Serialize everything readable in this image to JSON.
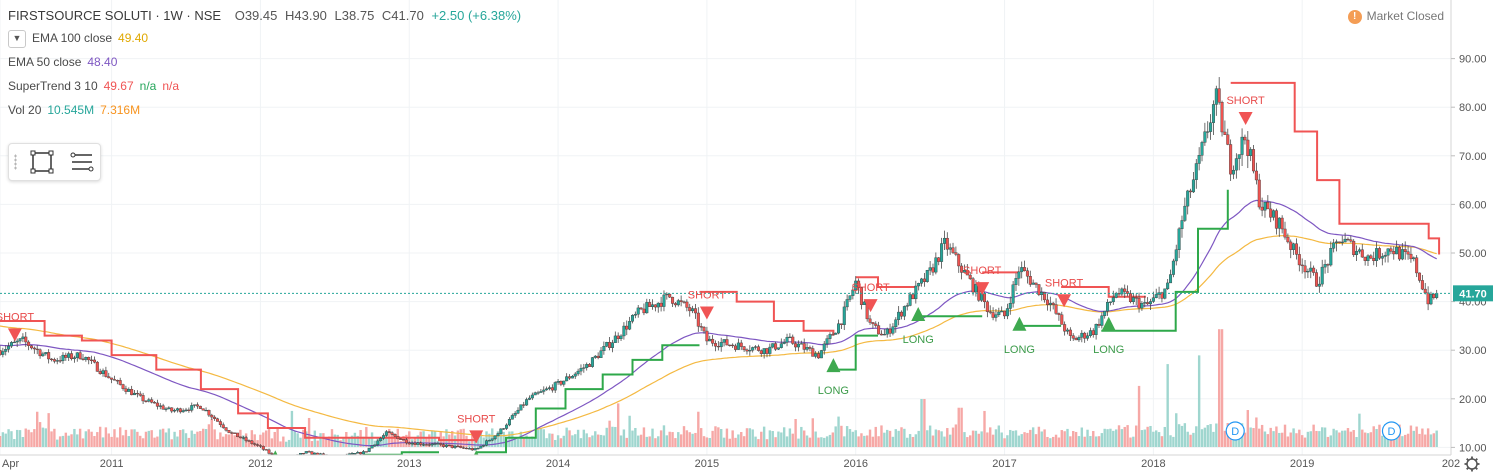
{
  "header": {
    "symbol": "FIRSTSOURCE SOLUTI · 1W · NSE",
    "open": "O39.45",
    "high": "H43.90",
    "low": "L38.75",
    "close": "C41.70",
    "change": "+2.50 (+6.38%)"
  },
  "studies": [
    {
      "name": "EMA 100 close",
      "values": [
        "49.40"
      ],
      "colors": [
        "#f4b942"
      ]
    },
    {
      "name": "EMA 50 close",
      "values": [
        "48.40"
      ],
      "colors": [
        "#7e57c2"
      ]
    },
    {
      "name": "SuperTrend 3 10",
      "values": [
        "49.67",
        "n/a",
        "n/a"
      ],
      "colors": [
        "#f05454",
        "#26a65b",
        "#f05454"
      ]
    },
    {
      "name": "Vol 20",
      "values": [
        "10.545M",
        "7.316M"
      ],
      "colors": [
        "#26a69a",
        "#f7931e"
      ]
    }
  ],
  "market_status": "Market Closed",
  "market_status_icon": "!",
  "price_label": "41.70",
  "colors": {
    "up": "#26a69a",
    "down": "#ef5350",
    "ema100": "#f4b942",
    "ema50": "#7e57c2",
    "supertrend_down": "#f05454",
    "supertrend_up": "#2ea84a",
    "price_line": "#26a69a"
  },
  "icons": [
    "chevron-down-icon",
    "rectangle-tool-icon",
    "lines-tool-icon",
    "exclamation-icon",
    "gear-icon",
    "dividend-icon"
  ],
  "chart_data": {
    "type": "candlestick",
    "title": "FIRSTSOURCE SOLUTI · 1W · NSE",
    "xlabel": "",
    "ylabel": "",
    "x_ticks": [
      "Apr",
      "2011",
      "2012",
      "2013",
      "2014",
      "2015",
      "2016",
      "2017",
      "2018",
      "2019",
      "202"
    ],
    "x_range": [
      2010.25,
      2020.0
    ],
    "y_ticks": [
      10,
      20,
      30,
      40,
      50,
      60,
      70,
      80,
      90
    ],
    "ylim": [
      3,
      90
    ],
    "grid": true,
    "last_price": 41.7,
    "price_anchors": [
      [
        2010.25,
        30
      ],
      [
        2010.4,
        32
      ],
      [
        2010.6,
        28
      ],
      [
        2010.8,
        29
      ],
      [
        2011.0,
        24
      ],
      [
        2011.2,
        20
      ],
      [
        2011.4,
        17.5
      ],
      [
        2011.6,
        18.5
      ],
      [
        2011.8,
        13
      ],
      [
        2012.0,
        10
      ],
      [
        2012.15,
        7
      ],
      [
        2012.3,
        9
      ],
      [
        2012.5,
        8
      ],
      [
        2012.7,
        9
      ],
      [
        2012.85,
        13
      ],
      [
        2013.0,
        11
      ],
      [
        2013.2,
        10.5
      ],
      [
        2013.45,
        9.5
      ],
      [
        2013.6,
        13
      ],
      [
        2013.8,
        20
      ],
      [
        2014.0,
        23
      ],
      [
        2014.2,
        27
      ],
      [
        2014.4,
        33
      ],
      [
        2014.55,
        38
      ],
      [
        2014.75,
        41
      ],
      [
        2014.9,
        38
      ],
      [
        2015.0,
        32
      ],
      [
        2015.2,
        31
      ],
      [
        2015.4,
        30
      ],
      [
        2015.55,
        32
      ],
      [
        2015.75,
        29
      ],
      [
        2015.9,
        36
      ],
      [
        2016.0,
        44
      ],
      [
        2016.1,
        35
      ],
      [
        2016.2,
        33
      ],
      [
        2016.35,
        40
      ],
      [
        2016.5,
        46
      ],
      [
        2016.6,
        52
      ],
      [
        2016.75,
        45
      ],
      [
        2016.9,
        38
      ],
      [
        2017.0,
        37
      ],
      [
        2017.1,
        47
      ],
      [
        2017.3,
        40
      ],
      [
        2017.45,
        32
      ],
      [
        2017.6,
        34
      ],
      [
        2017.75,
        42
      ],
      [
        2017.95,
        39
      ],
      [
        2018.1,
        43
      ],
      [
        2018.2,
        58
      ],
      [
        2018.3,
        68
      ],
      [
        2018.42,
        82
      ],
      [
        2018.52,
        68
      ],
      [
        2018.62,
        74
      ],
      [
        2018.72,
        60
      ],
      [
        2018.85,
        56
      ],
      [
        2018.95,
        50
      ],
      [
        2019.1,
        44
      ],
      [
        2019.25,
        53
      ],
      [
        2019.45,
        49
      ],
      [
        2019.6,
        51
      ],
      [
        2019.75,
        48
      ],
      [
        2019.85,
        40
      ],
      [
        2019.92,
        41.7
      ]
    ],
    "supertrend": {
      "down_segments": [
        [
          [
            2010.25,
            36
          ],
          [
            2010.55,
            33
          ],
          [
            2010.8,
            32
          ],
          [
            2011.0,
            29
          ],
          [
            2011.3,
            26
          ],
          [
            2011.6,
            22
          ],
          [
            2011.85,
            17
          ],
          [
            2012.05,
            14
          ],
          [
            2012.3,
            12
          ],
          [
            2012.6,
            12
          ],
          [
            2012.85,
            12
          ],
          [
            2013.2,
            11.5
          ],
          [
            2013.45,
            11
          ]
        ],
        [
          [
            2014.95,
            42
          ],
          [
            2015.2,
            40
          ],
          [
            2015.45,
            36
          ],
          [
            2015.65,
            34
          ],
          [
            2015.85,
            33
          ]
        ],
        [
          [
            2016.0,
            45
          ],
          [
            2016.15,
            43
          ],
          [
            2016.4,
            43
          ]
        ],
        [
          [
            2016.85,
            46
          ],
          [
            2017.1,
            46
          ]
        ],
        [
          [
            2017.38,
            43
          ],
          [
            2017.7,
            41
          ],
          [
            2017.95,
            41
          ]
        ],
        [
          [
            2018.52,
            85
          ],
          [
            2018.8,
            85
          ],
          [
            2018.95,
            75
          ],
          [
            2019.1,
            65
          ],
          [
            2019.25,
            56
          ],
          [
            2019.5,
            56
          ],
          [
            2019.75,
            56
          ],
          [
            2019.85,
            53
          ],
          [
            2019.92,
            49.7
          ]
        ]
      ],
      "up_segments": [
        [
          [
            2012.1,
            7.5
          ],
          [
            2012.4,
            7.5
          ],
          [
            2012.7,
            8.5
          ],
          [
            2012.95,
            9
          ],
          [
            2013.2,
            9
          ]
        ],
        [
          [
            2013.45,
            9
          ],
          [
            2013.65,
            12
          ],
          [
            2013.85,
            18
          ],
          [
            2014.05,
            22
          ],
          [
            2014.3,
            25
          ],
          [
            2014.5,
            28
          ],
          [
            2014.7,
            31
          ],
          [
            2014.95,
            31
          ]
        ],
        [
          [
            2015.85,
            26
          ],
          [
            2016.0,
            33
          ],
          [
            2016.15,
            33
          ]
        ],
        [
          [
            2016.4,
            37
          ],
          [
            2016.85,
            37
          ]
        ],
        [
          [
            2017.1,
            35
          ],
          [
            2017.38,
            35
          ]
        ],
        [
          [
            2017.65,
            34
          ],
          [
            2017.95,
            34
          ],
          [
            2018.15,
            42
          ],
          [
            2018.3,
            55
          ],
          [
            2018.5,
            63
          ]
        ]
      ]
    },
    "signals": [
      {
        "type": "SHORT",
        "x": 2010.35,
        "y": 34.5
      },
      {
        "type": "LONG",
        "x": 2012.1,
        "y": 6.5
      },
      {
        "type": "LONG",
        "x": 2013.45,
        "y": 6.5
      },
      {
        "type": "SHORT",
        "x": 2013.45,
        "y": 13.5
      },
      {
        "type": "SHORT",
        "x": 2015.0,
        "y": 39
      },
      {
        "type": "SHORT",
        "x": 2016.1,
        "y": 40.5
      },
      {
        "type": "LONG",
        "x": 2015.85,
        "y": 25.5
      },
      {
        "type": "LONG",
        "x": 2016.42,
        "y": 36
      },
      {
        "type": "SHORT",
        "x": 2016.85,
        "y": 44
      },
      {
        "type": "LONG",
        "x": 2017.1,
        "y": 34
      },
      {
        "type": "SHORT",
        "x": 2017.4,
        "y": 41.5
      },
      {
        "type": "LONG",
        "x": 2017.7,
        "y": 34
      },
      {
        "type": "SHORT",
        "x": 2018.62,
        "y": 79
      }
    ],
    "dividend_markers": [
      {
        "label": "D",
        "x": 2018.55
      },
      {
        "label": "D",
        "x": 2019.6
      }
    ],
    "volume": {
      "max_million": 55,
      "spikes": [
        [
          2018.45,
          54
        ],
        [
          2018.3,
          42
        ],
        [
          2018.1,
          38
        ],
        [
          2017.9,
          28
        ],
        [
          2016.45,
          22
        ],
        [
          2014.4,
          20
        ],
        [
          2016.7,
          18
        ]
      ]
    }
  }
}
